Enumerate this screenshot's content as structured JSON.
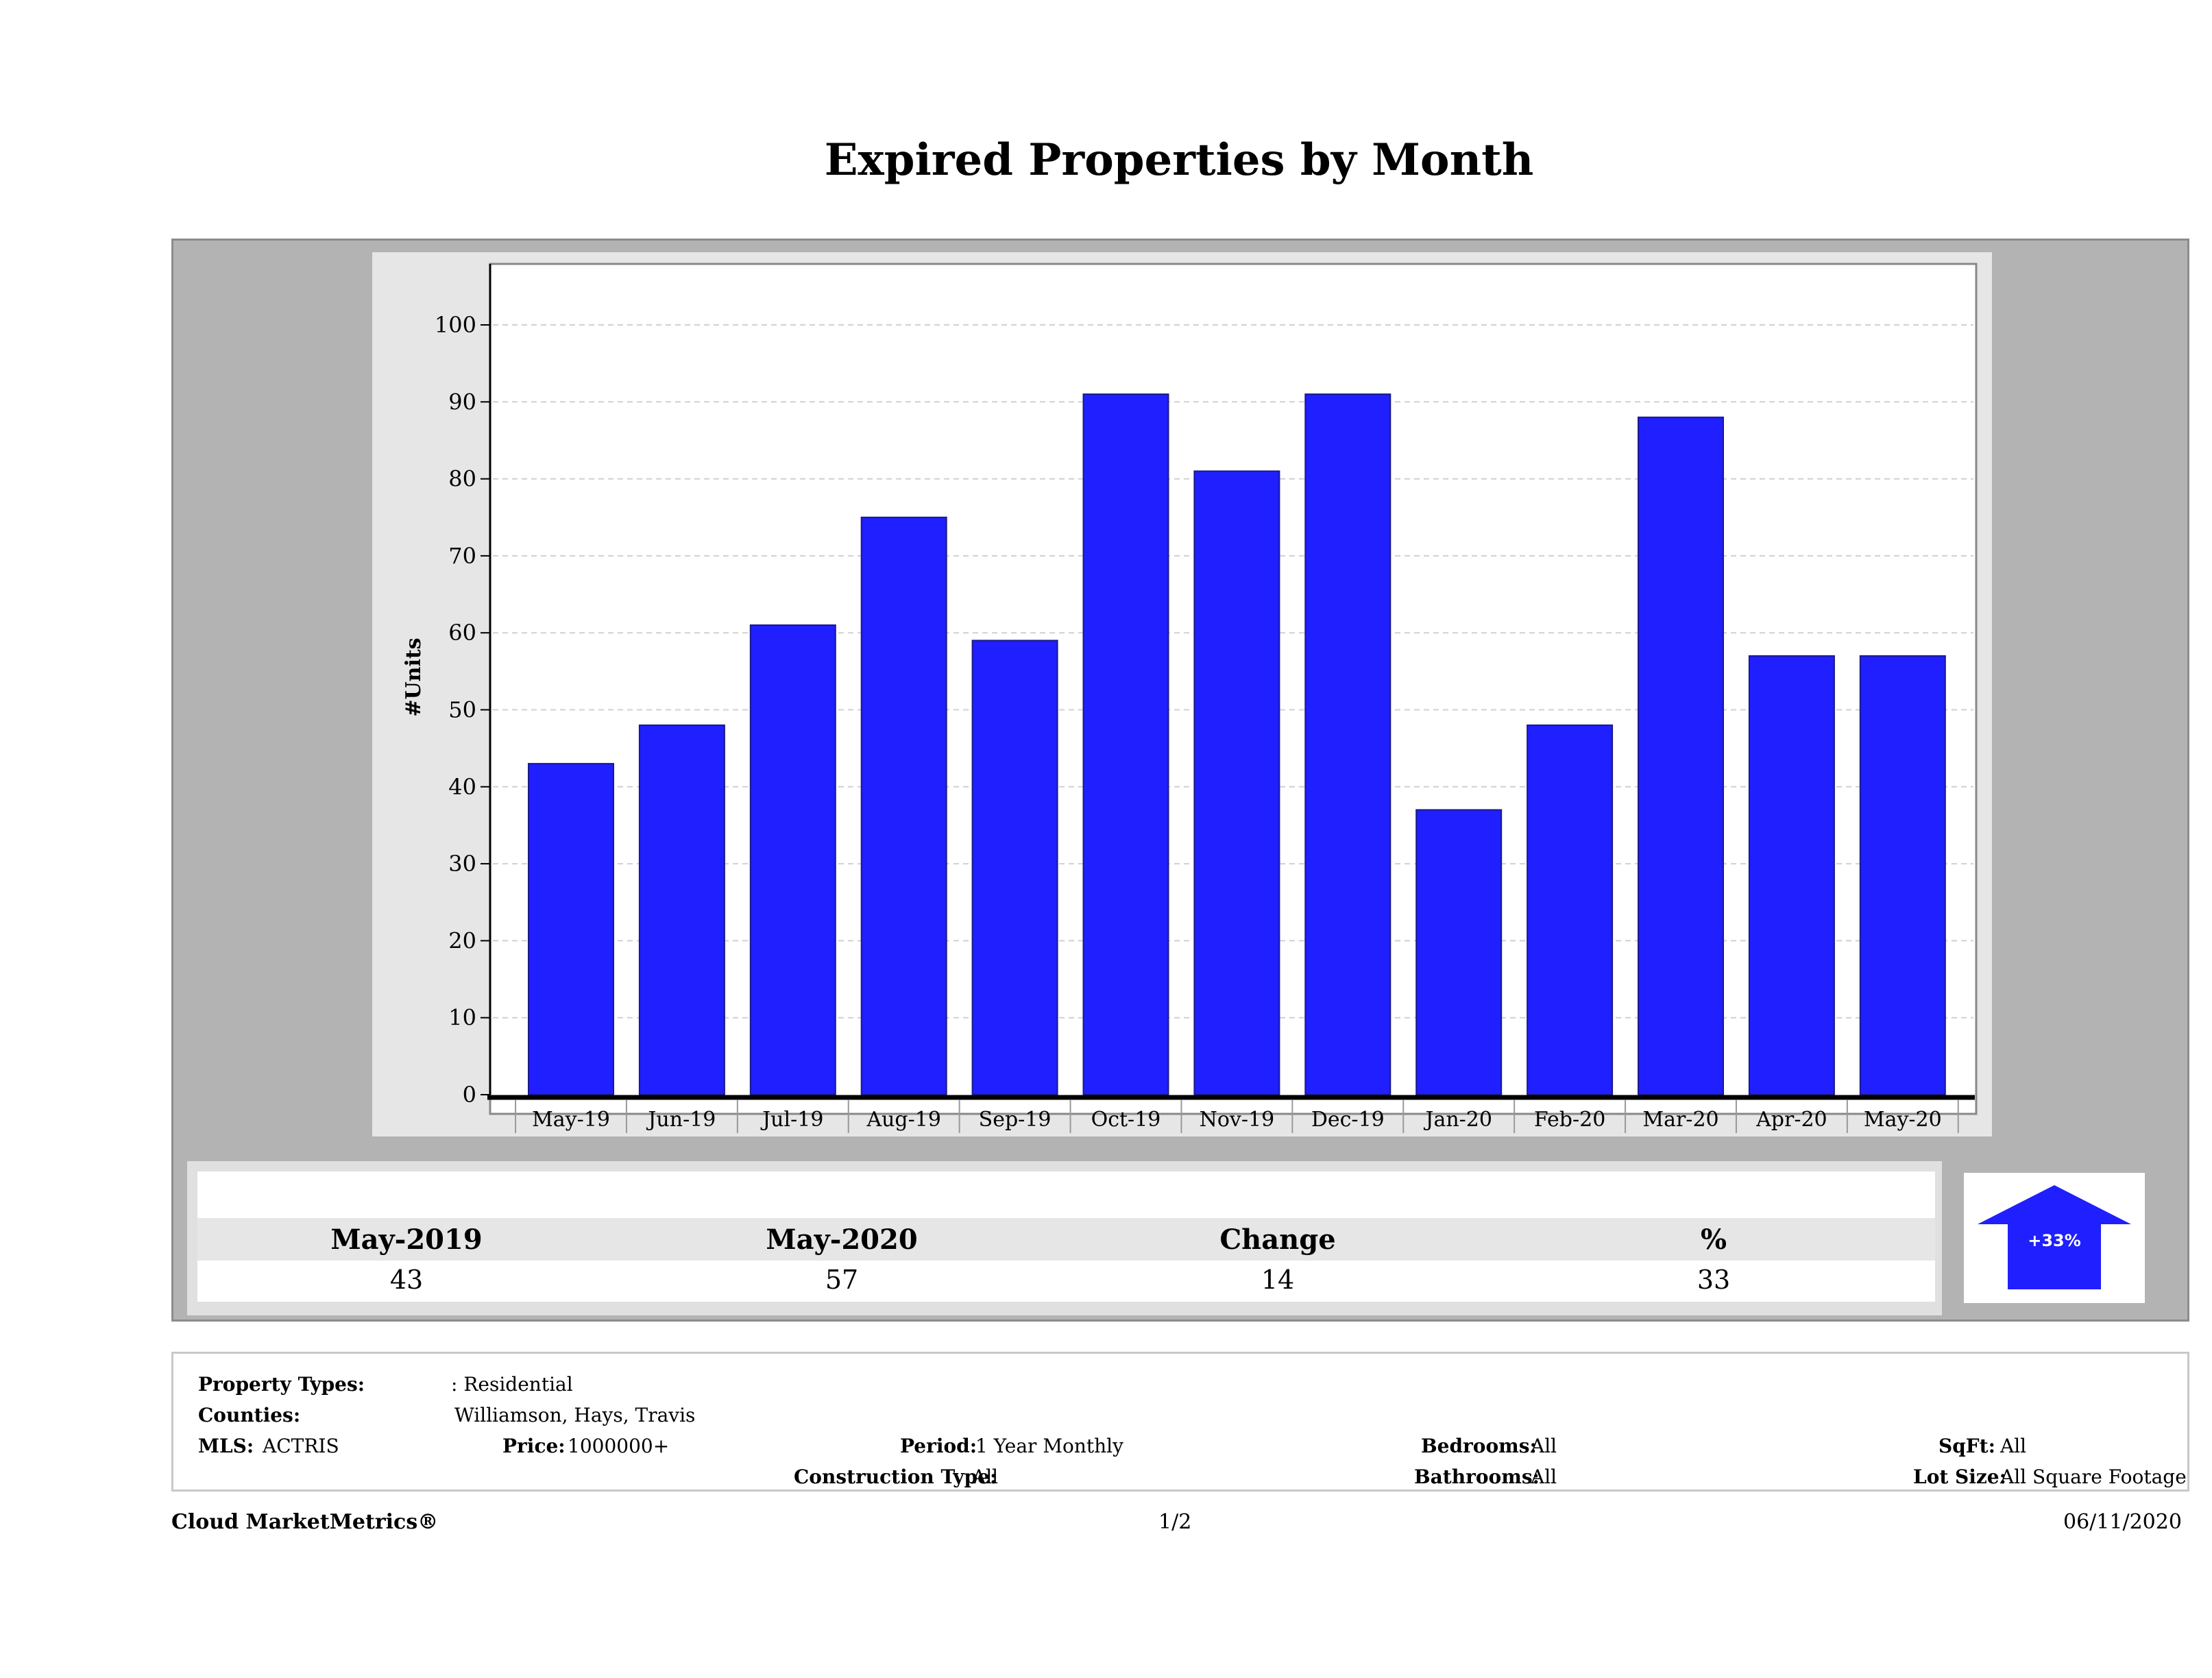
{
  "title": "Expired Properties by Month",
  "chart_data": {
    "type": "bar",
    "title": "Expired Properties by Month",
    "xlabel": "",
    "ylabel": "#Units",
    "ylim": [
      0,
      110
    ],
    "yticks": [
      0,
      10,
      20,
      30,
      40,
      50,
      60,
      70,
      80,
      90,
      100
    ],
    "categories": [
      "May-19",
      "Jun-19",
      "Jul-19",
      "Aug-19",
      "Sep-19",
      "Oct-19",
      "Nov-19",
      "Dec-19",
      "Jan-20",
      "Feb-20",
      "Mar-20",
      "Apr-20",
      "May-20"
    ],
    "values": [
      43,
      48,
      61,
      75,
      59,
      91,
      81,
      91,
      37,
      48,
      88,
      57,
      57
    ],
    "bar_color": "#1f1fff",
    "grid": true
  },
  "stats": {
    "headers": [
      "May-2019",
      "May-2020",
      "Change",
      "%"
    ],
    "values": [
      "43",
      "57",
      "14",
      "33"
    ],
    "arrow_label": "+33%",
    "arrow_color": "#1f1fff"
  },
  "info": {
    "property_types_label": "Property Types:",
    "property_types_value": ": Residential",
    "counties_label": "Counties:",
    "counties_value": "Williamson, Hays, Travis",
    "mls_label": "MLS:",
    "mls_value": "ACTRIS",
    "price_label": "Price:",
    "price_value": "1000000+",
    "period_label": "Period:",
    "period_value": "1 Year Monthly",
    "construction_label": "Construction Type:",
    "construction_value": "All",
    "bedrooms_label": "Bedrooms:",
    "bedrooms_value": "All",
    "bathrooms_label": "Bathrooms:",
    "bathrooms_value": "All",
    "sqft_label": "SqFt:",
    "sqft_value": "All",
    "lotsize_label": "Lot Size:",
    "lotsize_value": "All Square Footage"
  },
  "footer": {
    "brand": "Cloud MarketMetrics®",
    "page": "1/2",
    "date": "06/11/2020"
  }
}
